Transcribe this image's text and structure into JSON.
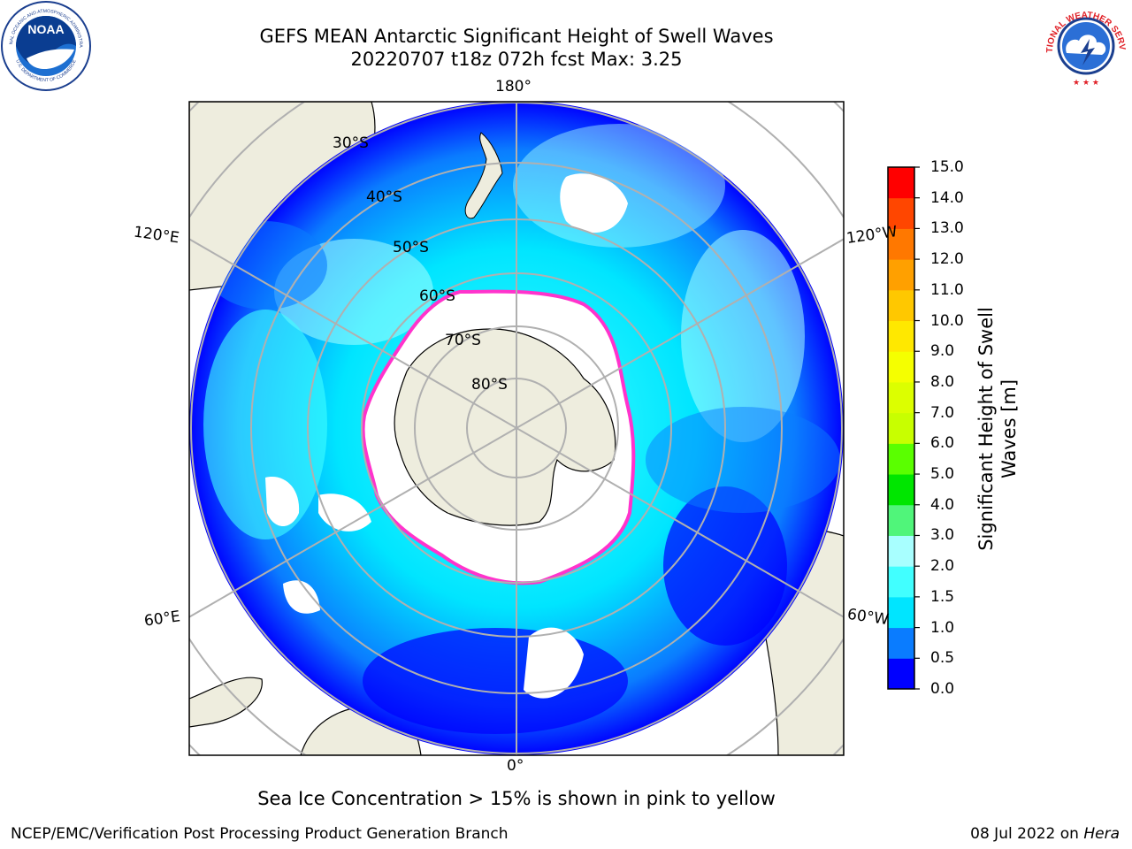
{
  "header": {
    "title_line1": "GEFS MEAN Antarctic Significant Height of Swell Waves",
    "title_line2": "20220707 t18z 072h fcst   Max: 3.25"
  },
  "logos": {
    "noaa_text": "NOAA",
    "noaa_ring_text": "NATIONAL OCEANIC AND ATMOSPHERIC ADMINISTRATION",
    "noaa_ring_bottom": "U.S. DEPARTMENT OF COMMERCE",
    "nws_ring_text": "NATIONAL WEATHER SERVICE"
  },
  "map": {
    "longitude_labels": {
      "top": "180°",
      "bottom": "0°",
      "upper_left": "120°E",
      "upper_right": "120°W",
      "lower_left": "60°E",
      "lower_right": "60°W"
    },
    "latitude_labels": [
      "30°S",
      "40°S",
      "50°S",
      "60°S",
      "70°S",
      "80°S"
    ],
    "colors": {
      "land": "#eeedde",
      "ice": "#ffffff",
      "ice_edge": "#ff33cc",
      "grid": "#b0b0b0"
    }
  },
  "colorbar": {
    "label_line1": "Significant Height of Swell",
    "label_line2": "Waves [m]",
    "ticks": [
      "0.0",
      "0.5",
      "1.0",
      "1.5",
      "2.0",
      "3.0",
      "4.0",
      "5.0",
      "6.0",
      "7.0",
      "8.0",
      "9.0",
      "10.0",
      "11.0",
      "12.0",
      "13.0",
      "14.0",
      "15.0"
    ],
    "colors": [
      "#0000ff",
      "#0a7cff",
      "#00e5ff",
      "#41ffff",
      "#a8ffff",
      "#50f57a",
      "#00e600",
      "#5aff00",
      "#c8ff00",
      "#dcff00",
      "#f5ff00",
      "#ffe800",
      "#ffc800",
      "#ffa000",
      "#ff7800",
      "#ff4600",
      "#ff0000"
    ]
  },
  "footer": {
    "note": "Sea Ice Concentration > 15% is shown in pink to yellow",
    "credit": "NCEP/EMC/Verification Post Processing Product Generation Branch",
    "date": "08 Jul 2022 on",
    "host": "Hera"
  }
}
